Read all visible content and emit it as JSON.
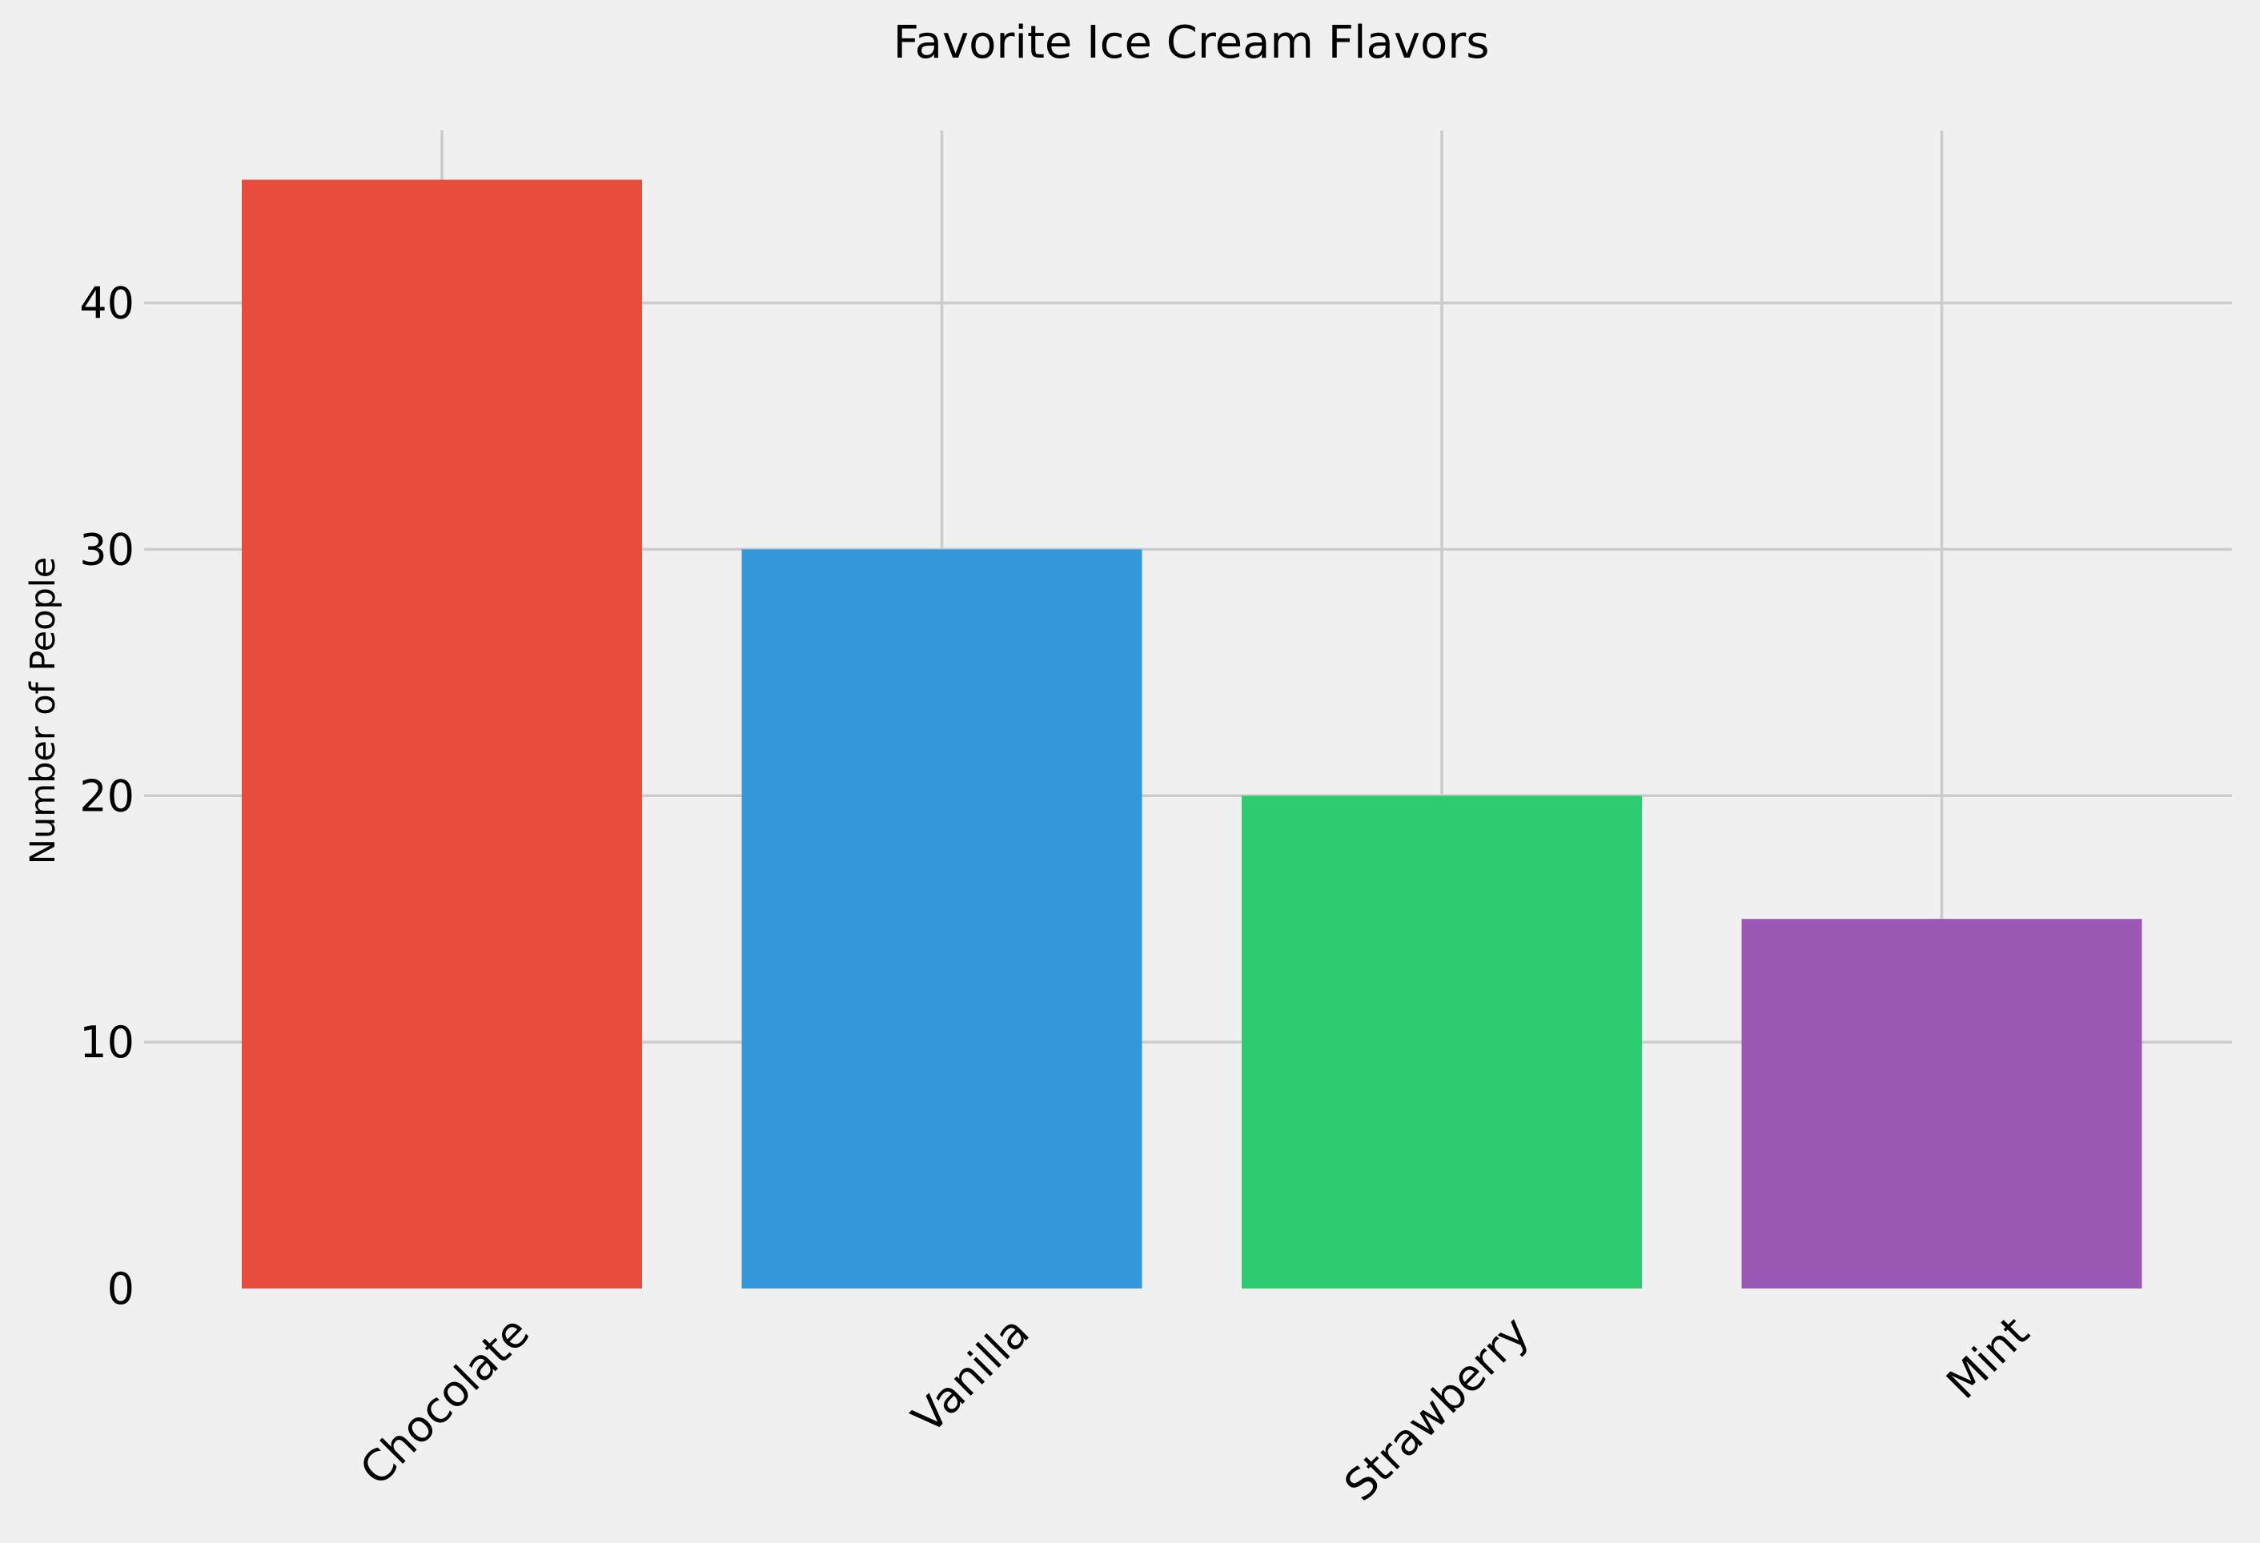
{
  "chart_data": {
    "type": "bar",
    "title": "Favorite Ice Cream Flavors",
    "xlabel": "",
    "ylabel": "Number of People",
    "categories": [
      "Chocolate",
      "Vanilla",
      "Strawberry",
      "Mint"
    ],
    "values": [
      45,
      30,
      20,
      15
    ],
    "colors": [
      "#e74c3c",
      "#3498db",
      "#2ecc71",
      "#9b59b6"
    ],
    "ylim": [
      0,
      47
    ],
    "yticks": [
      0,
      10,
      20,
      30,
      40
    ],
    "ytick_labels": [
      "0",
      "10",
      "20",
      "30",
      "40"
    ],
    "grid": true,
    "x_tick_rotation": "45 degrees",
    "background_color": "#f0f0f0",
    "grid_color": "#cbcbcb"
  }
}
